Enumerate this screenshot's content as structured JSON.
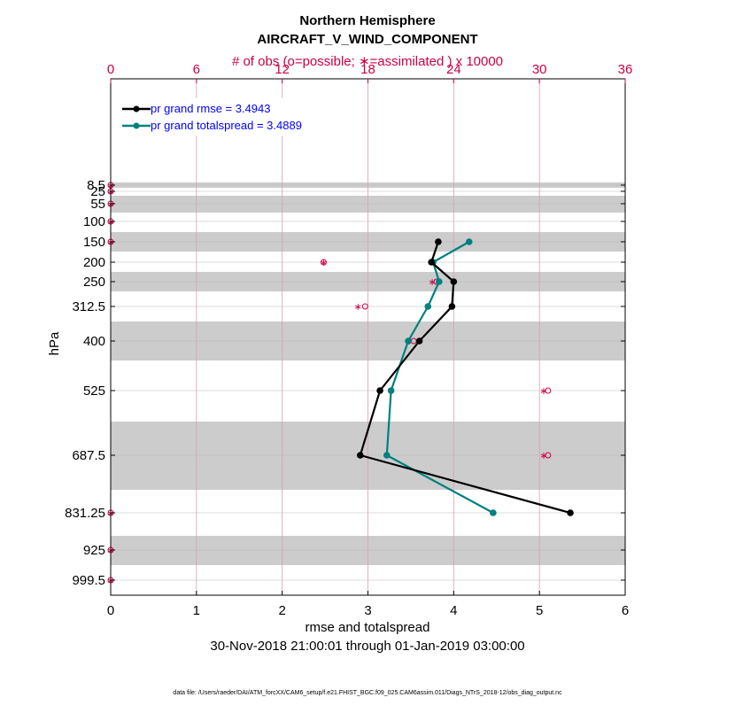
{
  "chart_data": {
    "type": "line",
    "title": "Northern Hemisphere",
    "subtitle": "AIRCRAFT_V_WIND_COMPONENT",
    "top_axis_label": "# of obs (o=possible; ∗=assimilated ) x 10000",
    "top_ticks": [
      "0",
      "6",
      "12",
      "18",
      "24",
      "30",
      "36"
    ],
    "xlabel": "rmse and totalspread",
    "x_ticks": [
      "0",
      "1",
      "2",
      "3",
      "4",
      "5",
      "6"
    ],
    "xlim": [
      0,
      6
    ],
    "ylabel": "hPa",
    "y_ticks": [
      "8.5",
      "25",
      "55",
      "100",
      "150",
      "200",
      "250",
      "312.5",
      "400",
      "525",
      "687.5",
      "831.25",
      "925",
      "999.5"
    ],
    "date_range": "30-Nov-2018 21:00:01 through 01-Jan-2019 03:00:00",
    "footnote": "data file: /Users/raeder/DAI/ATM_forcXX/CAM6_setup/f.e21.FHIST_BGC.f09_025.CAM6assim.011/Diags_NTrS_2018-12/obs_diag_output.nc",
    "legend_position": "top-left",
    "levels": [
      8.5,
      25,
      55,
      100,
      150,
      200,
      250,
      312.5,
      400,
      525,
      687.5,
      831.25,
      925,
      999.5
    ],
    "series": [
      {
        "name": "rmse",
        "legend": "pr grand rmse = 3.4943",
        "color": "#000000",
        "levels": [
          150,
          200,
          250,
          312.5,
          400,
          525,
          687.5,
          831.25
        ],
        "values": [
          3.82,
          3.74,
          4.0,
          3.98,
          3.6,
          3.14,
          2.91,
          5.36
        ]
      },
      {
        "name": "totalspread",
        "legend": "pr grand totalspread = 3.4889",
        "color": "#008080",
        "levels": [
          150,
          200,
          250,
          312.5,
          400,
          525,
          687.5,
          831.25
        ],
        "values": [
          4.18,
          3.76,
          3.83,
          3.7,
          3.47,
          3.27,
          3.22,
          4.46
        ]
      }
    ],
    "obs_counts_x10000": {
      "levels": [
        8.5,
        25,
        55,
        100,
        150,
        200,
        250,
        312.5,
        400,
        525,
        687.5,
        831.25,
        925,
        999.5
      ],
      "possible": [
        0,
        0,
        0,
        0,
        0,
        14.9,
        22.8,
        17.8,
        21.2,
        30.6,
        30.6,
        0,
        0,
        0
      ],
      "assimilated": [
        0,
        0,
        0,
        0,
        0,
        14.9,
        22.5,
        17.3,
        20.9,
        30.3,
        30.3,
        0,
        0,
        0
      ]
    },
    "colors": {
      "obs_marker": "#cc0044",
      "shade": "#cccccc",
      "legend_text": "#0000ff",
      "top_axis": "#cc0044"
    }
  }
}
